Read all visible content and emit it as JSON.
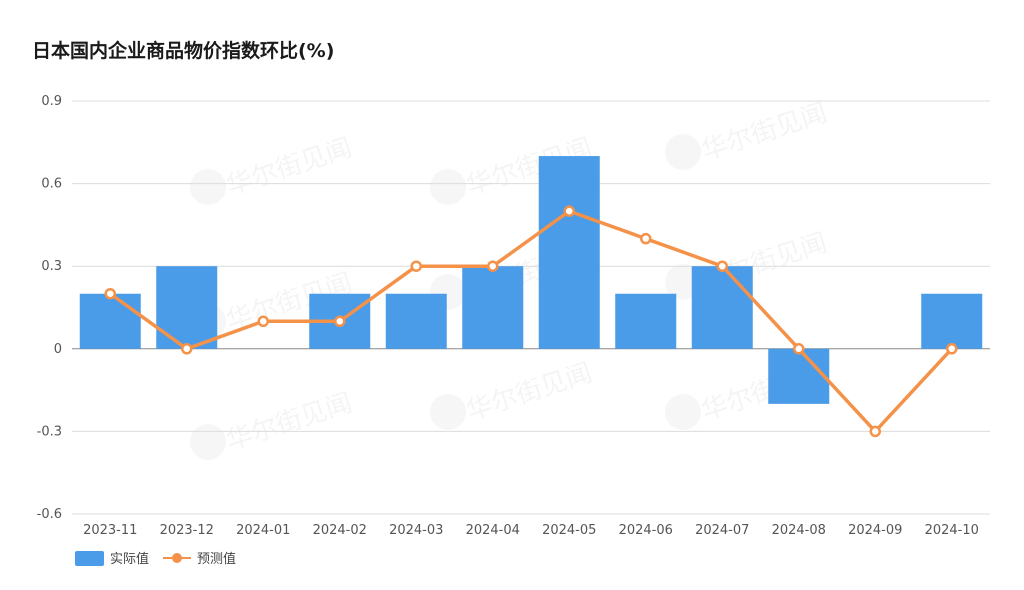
{
  "chart_data": {
    "type": "bar",
    "title": "日本国内企业商品物价指数环比(%)",
    "categories": [
      "2023-11",
      "2023-12",
      "2024-01",
      "2024-02",
      "2024-03",
      "2024-04",
      "2024-05",
      "2024-06",
      "2024-07",
      "2024-08",
      "2024-09",
      "2024-10"
    ],
    "series": [
      {
        "name": "实际值",
        "type": "bar",
        "color": "#4a9be8",
        "values": [
          0.2,
          0.3,
          0,
          0.2,
          0.2,
          0.3,
          0.7,
          0.2,
          0.3,
          -0.2,
          0,
          0.2
        ]
      },
      {
        "name": "预测值",
        "type": "line",
        "color": "#f4924a",
        "values": [
          0.2,
          0,
          0.1,
          0.1,
          0.3,
          0.3,
          0.5,
          0.4,
          0.3,
          0,
          -0.3,
          0
        ]
      }
    ],
    "y_ticks": [
      "0.9",
      "0.6",
      "0.3",
      "0",
      "-0.3",
      "-0.6"
    ],
    "ylim": [
      -0.6,
      0.9
    ],
    "grid": true,
    "legend_position": "bottom-left"
  },
  "watermark": "华尔街见闻"
}
